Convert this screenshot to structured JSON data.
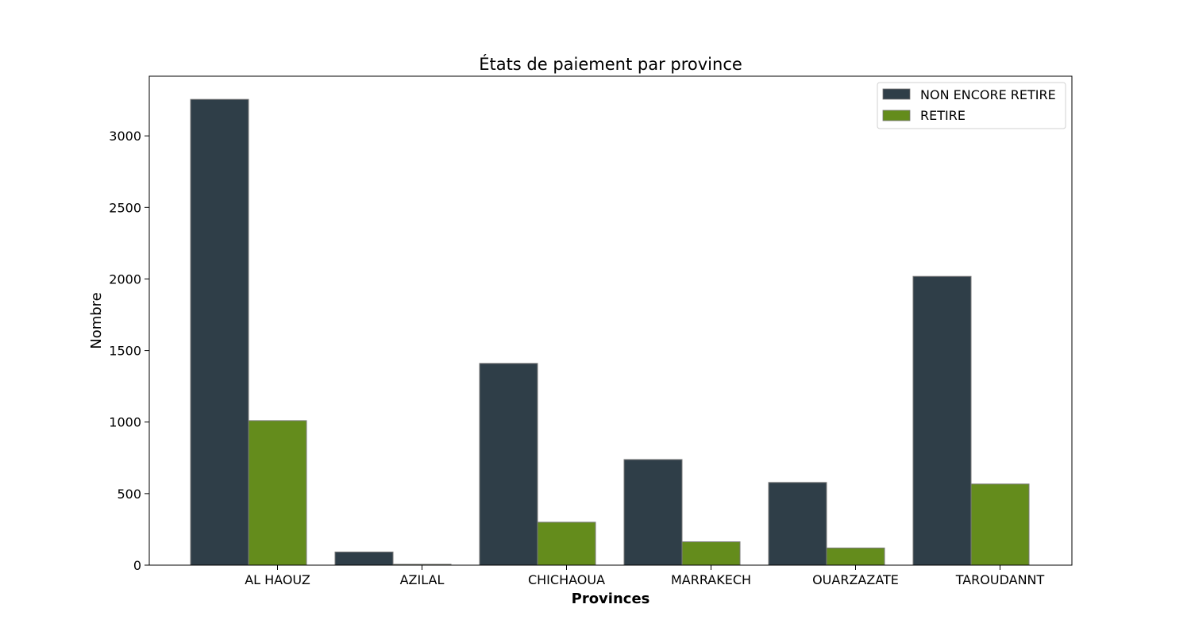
{
  "chart_data": {
    "type": "bar",
    "title": "États de paiement par province",
    "xlabel": "Provinces",
    "ylabel": "Nombre",
    "categories": [
      "AL HAOUZ",
      "AZILAL",
      "CHICHAOUA",
      "MARRAKECH",
      "OUARZAZATE",
      "TAROUDANNT"
    ],
    "series": [
      {
        "name": "NON ENCORE RETIRE",
        "color": "#2f3e48",
        "values": [
          3255,
          92,
          1410,
          738,
          578,
          2018
        ]
      },
      {
        "name": "RETIRE",
        "color": "#648c1c",
        "values": [
          1010,
          6,
          300,
          163,
          120,
          567
        ]
      }
    ],
    "ylim": [
      0,
      3417
    ],
    "yticks": [
      0,
      500,
      1000,
      1500,
      2000,
      2500,
      3000
    ],
    "grid": false,
    "legend_position": "top-right"
  }
}
